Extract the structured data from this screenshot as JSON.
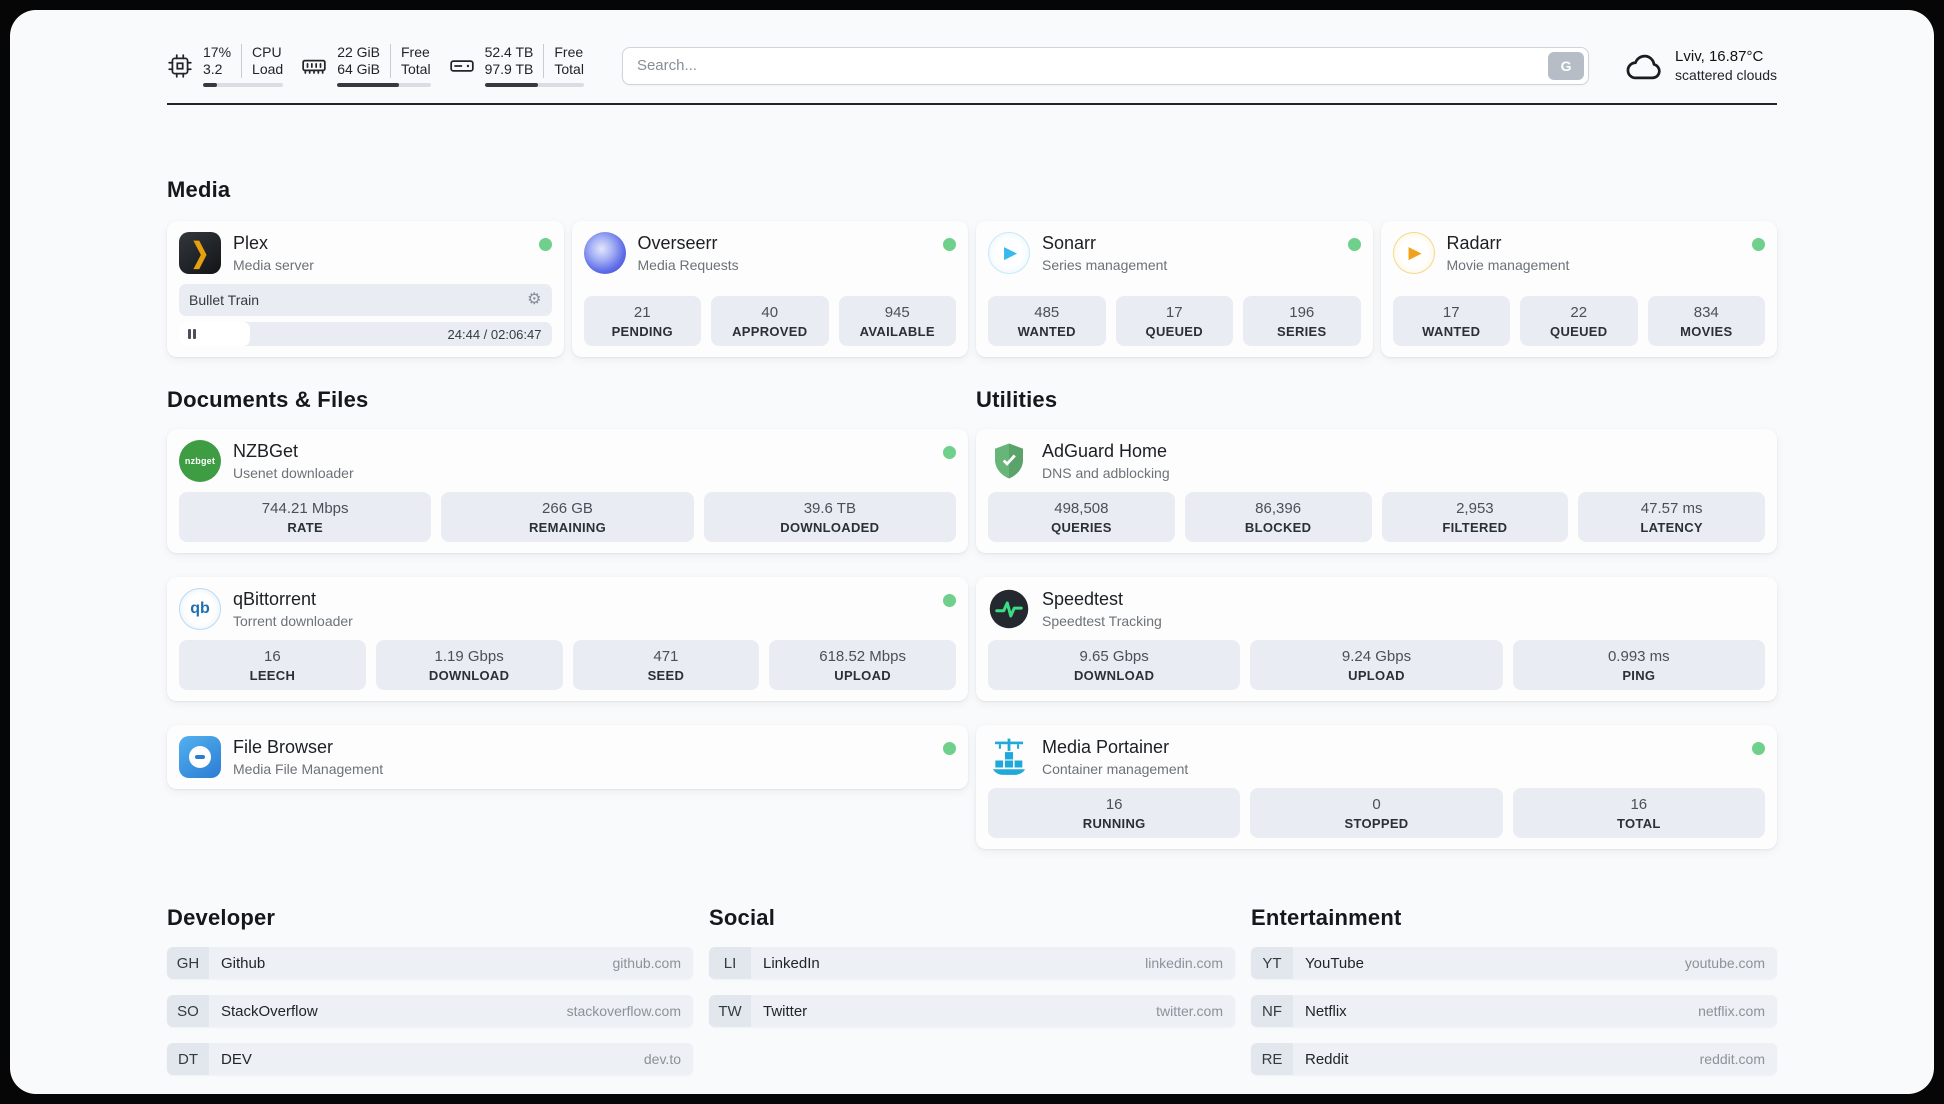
{
  "header": {
    "metrics": [
      {
        "icon": "cpu-icon",
        "values": [
          "17%",
          "3.2"
        ],
        "labels": [
          "CPU",
          "Load"
        ],
        "progress_pct": 17
      },
      {
        "icon": "ram-icon",
        "values": [
          "22 GiB",
          "64 GiB"
        ],
        "labels": [
          "Free",
          "Total"
        ],
        "progress_pct": 66
      },
      {
        "icon": "disk-icon",
        "values": [
          "52.4 TB",
          "97.9 TB"
        ],
        "labels": [
          "Free",
          "Total"
        ],
        "progress_pct": 54
      }
    ],
    "search": {
      "placeholder": "Search...",
      "engine_button": "G"
    },
    "weather": {
      "icon": "cloud-icon",
      "location": "Lviv, 16.87°C",
      "condition": "scattered clouds"
    }
  },
  "media": {
    "title": "Media",
    "plex": {
      "icon": "plex-icon",
      "icon_glyph": "❯",
      "name": "Plex",
      "subtitle": "Media server",
      "status": "online",
      "now_playing": "Bullet Train",
      "gear_glyph": "⚙",
      "time": "24:44 / 02:06:47",
      "progress_pct": 19
    },
    "overseerr": {
      "icon": "overseerr-icon",
      "name": "Overseerr",
      "subtitle": "Media Requests",
      "status": "online",
      "stats": [
        {
          "value": "21",
          "label": "PENDING"
        },
        {
          "value": "40",
          "label": "APPROVED"
        },
        {
          "value": "945",
          "label": "AVAILABLE"
        }
      ]
    },
    "sonarr": {
      "icon": "sonarr-icon",
      "icon_glyph": "▶",
      "name": "Sonarr",
      "subtitle": "Series management",
      "status": "online",
      "stats": [
        {
          "value": "485",
          "label": "WANTED"
        },
        {
          "value": "17",
          "label": "QUEUED"
        },
        {
          "value": "196",
          "label": "SERIES"
        }
      ]
    },
    "radarr": {
      "icon": "radarr-icon",
      "icon_glyph": "▶",
      "name": "Radarr",
      "subtitle": "Movie management",
      "status": "online",
      "stats": [
        {
          "value": "17",
          "label": "WANTED"
        },
        {
          "value": "22",
          "label": "QUEUED"
        },
        {
          "value": "834",
          "label": "MOVIES"
        }
      ]
    }
  },
  "documents": {
    "title": "Documents & Files",
    "nzbget": {
      "icon": "nzbget-icon",
      "icon_text": "nzbget",
      "name": "NZBGet",
      "subtitle": "Usenet downloader",
      "status": "online",
      "stats": [
        {
          "value": "744.21 Mbps",
          "label": "RATE"
        },
        {
          "value": "266 GB",
          "label": "REMAINING"
        },
        {
          "value": "39.6 TB",
          "label": "DOWNLOADED"
        }
      ]
    },
    "qbittorrent": {
      "icon": "qbittorrent-icon",
      "icon_text": "qb",
      "name": "qBittorrent",
      "subtitle": "Torrent downloader",
      "status": "online",
      "stats": [
        {
          "value": "16",
          "label": "LEECH"
        },
        {
          "value": "1.19 Gbps",
          "label": "DOWNLOAD"
        },
        {
          "value": "471",
          "label": "SEED"
        },
        {
          "value": "618.52 Mbps",
          "label": "UPLOAD"
        }
      ]
    },
    "filebrowser": {
      "icon": "filebrowser-icon",
      "name": "File Browser",
      "subtitle": "Media File Management",
      "status": "online"
    }
  },
  "utilities": {
    "title": "Utilities",
    "adguard": {
      "icon": "adguard-shield-icon",
      "name": "AdGuard Home",
      "subtitle": "DNS and adblocking",
      "stats": [
        {
          "value": "498,508",
          "label": "QUERIES"
        },
        {
          "value": "86,396",
          "label": "BLOCKED"
        },
        {
          "value": "2,953",
          "label": "FILTERED"
        },
        {
          "value": "47.57 ms",
          "label": "LATENCY"
        }
      ]
    },
    "speedtest": {
      "icon": "speedtest-icon",
      "name": "Speedtest",
      "subtitle": "Speedtest Tracking",
      "stats": [
        {
          "value": "9.65 Gbps",
          "label": "DOWNLOAD"
        },
        {
          "value": "9.24 Gbps",
          "label": "UPLOAD"
        },
        {
          "value": "0.993 ms",
          "label": "PING"
        }
      ]
    },
    "portainer": {
      "icon": "portainer-icon",
      "name": "Media Portainer",
      "subtitle": "Container management",
      "status": "online",
      "stats": [
        {
          "value": "16",
          "label": "RUNNING"
        },
        {
          "value": "0",
          "label": "STOPPED"
        },
        {
          "value": "16",
          "label": "TOTAL"
        }
      ]
    }
  },
  "developer": {
    "title": "Developer",
    "links": [
      {
        "abbr": "GH",
        "name": "Github",
        "url": "github.com"
      },
      {
        "abbr": "SO",
        "name": "StackOverflow",
        "url": "stackoverflow.com"
      },
      {
        "abbr": "DT",
        "name": "DEV",
        "url": "dev.to"
      }
    ]
  },
  "social": {
    "title": "Social",
    "links": [
      {
        "abbr": "LI",
        "name": "LinkedIn",
        "url": "linkedin.com"
      },
      {
        "abbr": "TW",
        "name": "Twitter",
        "url": "twitter.com"
      }
    ]
  },
  "entertainment": {
    "title": "Entertainment",
    "links": [
      {
        "abbr": "YT",
        "name": "YouTube",
        "url": "youtube.com"
      },
      {
        "abbr": "NF",
        "name": "Netflix",
        "url": "netflix.com"
      },
      {
        "abbr": "RE",
        "name": "Reddit",
        "url": "reddit.com"
      }
    ]
  }
}
